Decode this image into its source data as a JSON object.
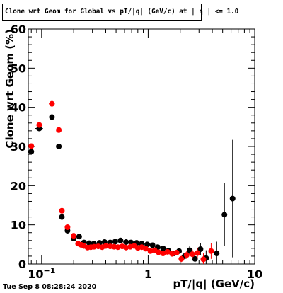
{
  "title": "Clone wrt Geom for Global vs pT/|q| (GeV/c) at | η | <= 1.0",
  "timestamp": "Tue Sep  8 08:28:24 2020",
  "chart_data": {
    "type": "scatter",
    "title": "Clone wrt Geom for Global vs pT/|q| (GeV/c) at | η | <= 1.0",
    "xlabel": "pT/|q| (GeV/c)",
    "ylabel": "Clone wrt Geom (%)",
    "xscale": "log",
    "xlim": [
      0.075,
      10
    ],
    "ylim": [
      0,
      60
    ],
    "grid": true,
    "x_tick_labels": [
      {
        "x": 0.1,
        "label": "10",
        "sup": "−1"
      },
      {
        "x": 1,
        "label": "1",
        "sup": ""
      },
      {
        "x": 10,
        "label": "10",
        "sup": ""
      }
    ],
    "y_ticks": [
      0,
      10,
      20,
      30,
      40,
      50,
      60
    ],
    "series": [
      {
        "color": "#000000",
        "points": [
          {
            "x": 0.08,
            "y": 28.7,
            "xerr": 0.003,
            "yerr": 0.6
          },
          {
            "x": 0.095,
            "y": 34.6,
            "xerr": 0.008,
            "yerr": 0.6
          },
          {
            "x": 0.125,
            "y": 37.5,
            "xerr": 0.008,
            "yerr": 0.5
          },
          {
            "x": 0.145,
            "y": 30.0,
            "xerr": 0.006,
            "yerr": 0.5
          },
          {
            "x": 0.155,
            "y": 12.0,
            "xerr": 0.004,
            "yerr": 0.4
          },
          {
            "x": 0.175,
            "y": 8.5,
            "xerr": 0.005,
            "yerr": 0.3
          },
          {
            "x": 0.2,
            "y": 6.5,
            "xerr": 0.005,
            "yerr": 0.3
          },
          {
            "x": 0.225,
            "y": 7.0,
            "xerr": 0.006,
            "yerr": 0.3
          },
          {
            "x": 0.25,
            "y": 5.5,
            "xerr": 0.007,
            "yerr": 0.3
          },
          {
            "x": 0.28,
            "y": 5.3,
            "xerr": 0.008,
            "yerr": 0.3
          },
          {
            "x": 0.31,
            "y": 5.2,
            "xerr": 0.009,
            "yerr": 0.3
          },
          {
            "x": 0.35,
            "y": 5.4,
            "xerr": 0.01,
            "yerr": 0.3
          },
          {
            "x": 0.39,
            "y": 5.6,
            "xerr": 0.011,
            "yerr": 0.3
          },
          {
            "x": 0.44,
            "y": 5.5,
            "xerr": 0.012,
            "yerr": 0.3
          },
          {
            "x": 0.49,
            "y": 5.7,
            "xerr": 0.014,
            "yerr": 0.3
          },
          {
            "x": 0.55,
            "y": 6.0,
            "xerr": 0.015,
            "yerr": 0.3
          },
          {
            "x": 0.62,
            "y": 5.6,
            "xerr": 0.017,
            "yerr": 0.3
          },
          {
            "x": 0.69,
            "y": 5.5,
            "xerr": 0.019,
            "yerr": 0.3
          },
          {
            "x": 0.78,
            "y": 5.4,
            "xerr": 0.022,
            "yerr": 0.3
          },
          {
            "x": 0.87,
            "y": 5.2,
            "xerr": 0.024,
            "yerr": 0.3
          },
          {
            "x": 0.98,
            "y": 5.0,
            "xerr": 0.027,
            "yerr": 0.3
          },
          {
            "x": 1.1,
            "y": 4.8,
            "xerr": 0.03,
            "yerr": 0.3
          },
          {
            "x": 1.23,
            "y": 4.3,
            "xerr": 0.034,
            "yerr": 0.3
          },
          {
            "x": 1.38,
            "y": 4.0,
            "xerr": 0.038,
            "yerr": 0.3
          },
          {
            "x": 1.55,
            "y": 3.4,
            "xerr": 0.043,
            "yerr": 0.4
          },
          {
            "x": 1.74,
            "y": 2.7,
            "xerr": 0.048,
            "yerr": 0.5
          },
          {
            "x": 1.95,
            "y": 3.3,
            "xerr": 0.054,
            "yerr": 0.6
          },
          {
            "x": 2.2,
            "y": 2.0,
            "xerr": 0.06,
            "yerr": 0.8
          },
          {
            "x": 2.45,
            "y": 3.5,
            "xerr": 0.07,
            "yerr": 1.0
          },
          {
            "x": 2.75,
            "y": 1.3,
            "xerr": 0.08,
            "yerr": 1.3
          },
          {
            "x": 3.1,
            "y": 3.8,
            "xerr": 0.09,
            "yerr": 1.6
          },
          {
            "x": 3.5,
            "y": 1.5,
            "xerr": 0.1,
            "yerr": 2.0
          },
          {
            "x": 4.4,
            "y": 2.7,
            "xerr": 0.13,
            "yerr": 3.0
          },
          {
            "x": 5.2,
            "y": 12.6,
            "xerr": 0.15,
            "yerr": 8.0
          },
          {
            "x": 6.2,
            "y": 16.7,
            "xerr": 0.18,
            "yerr": 15.0
          }
        ]
      },
      {
        "color": "#ff0000",
        "points": [
          {
            "x": 0.08,
            "y": 30.1,
            "xerr": 0.003,
            "yerr": 0.6
          },
          {
            "x": 0.095,
            "y": 35.5,
            "xerr": 0.008,
            "yerr": 0.6
          },
          {
            "x": 0.125,
            "y": 40.9,
            "xerr": 0.008,
            "yerr": 0.5
          },
          {
            "x": 0.145,
            "y": 34.2,
            "xerr": 0.006,
            "yerr": 0.5
          },
          {
            "x": 0.155,
            "y": 13.6,
            "xerr": 0.004,
            "yerr": 0.4
          },
          {
            "x": 0.175,
            "y": 9.4,
            "xerr": 0.005,
            "yerr": 0.3
          },
          {
            "x": 0.2,
            "y": 7.2,
            "xerr": 0.005,
            "yerr": 0.3
          },
          {
            "x": 0.22,
            "y": 5.2,
            "xerr": 0.005,
            "yerr": 0.3
          },
          {
            "x": 0.235,
            "y": 4.9,
            "xerr": 0.006,
            "yerr": 0.3
          },
          {
            "x": 0.25,
            "y": 4.6,
            "xerr": 0.006,
            "yerr": 0.3
          },
          {
            "x": 0.27,
            "y": 4.2,
            "xerr": 0.007,
            "yerr": 0.3
          },
          {
            "x": 0.29,
            "y": 4.3,
            "xerr": 0.007,
            "yerr": 0.3
          },
          {
            "x": 0.31,
            "y": 4.4,
            "xerr": 0.008,
            "yerr": 0.3
          },
          {
            "x": 0.34,
            "y": 4.5,
            "xerr": 0.009,
            "yerr": 0.3
          },
          {
            "x": 0.37,
            "y": 4.3,
            "xerr": 0.01,
            "yerr": 0.3
          },
          {
            "x": 0.4,
            "y": 4.6,
            "xerr": 0.011,
            "yerr": 0.3
          },
          {
            "x": 0.44,
            "y": 4.5,
            "xerr": 0.012,
            "yerr": 0.3
          },
          {
            "x": 0.48,
            "y": 4.4,
            "xerr": 0.013,
            "yerr": 0.3
          },
          {
            "x": 0.52,
            "y": 4.3,
            "xerr": 0.014,
            "yerr": 0.3
          },
          {
            "x": 0.57,
            "y": 4.5,
            "xerr": 0.015,
            "yerr": 0.3
          },
          {
            "x": 0.62,
            "y": 4.2,
            "xerr": 0.017,
            "yerr": 0.3
          },
          {
            "x": 0.68,
            "y": 4.4,
            "xerr": 0.018,
            "yerr": 0.3
          },
          {
            "x": 0.74,
            "y": 4.6,
            "xerr": 0.02,
            "yerr": 0.3
          },
          {
            "x": 0.8,
            "y": 4.1,
            "xerr": 0.022,
            "yerr": 0.3
          },
          {
            "x": 0.87,
            "y": 4.3,
            "xerr": 0.024,
            "yerr": 0.3
          },
          {
            "x": 0.95,
            "y": 3.9,
            "xerr": 0.026,
            "yerr": 0.3
          },
          {
            "x": 1.05,
            "y": 3.3,
            "xerr": 0.028,
            "yerr": 0.3
          },
          {
            "x": 1.15,
            "y": 3.5,
            "xerr": 0.031,
            "yerr": 0.3
          },
          {
            "x": 1.25,
            "y": 3.0,
            "xerr": 0.034,
            "yerr": 0.3
          },
          {
            "x": 1.38,
            "y": 2.7,
            "xerr": 0.038,
            "yerr": 0.4
          },
          {
            "x": 1.52,
            "y": 3.1,
            "xerr": 0.042,
            "yerr": 0.4
          },
          {
            "x": 1.68,
            "y": 2.6,
            "xerr": 0.046,
            "yerr": 0.5
          },
          {
            "x": 1.85,
            "y": 2.9,
            "xerr": 0.05,
            "yerr": 0.6
          },
          {
            "x": 2.05,
            "y": 1.3,
            "xerr": 0.055,
            "yerr": 0.8
          },
          {
            "x": 2.3,
            "y": 2.3,
            "xerr": 0.06,
            "yerr": 1.0
          },
          {
            "x": 2.6,
            "y": 2.5,
            "xerr": 0.07,
            "yerr": 1.2
          },
          {
            "x": 2.9,
            "y": 2.8,
            "xerr": 0.08,
            "yerr": 1.4
          },
          {
            "x": 3.3,
            "y": 1.2,
            "xerr": 0.09,
            "yerr": 1.5
          },
          {
            "x": 3.9,
            "y": 3.3,
            "xerr": 0.11,
            "yerr": 2.0
          }
        ]
      }
    ]
  }
}
